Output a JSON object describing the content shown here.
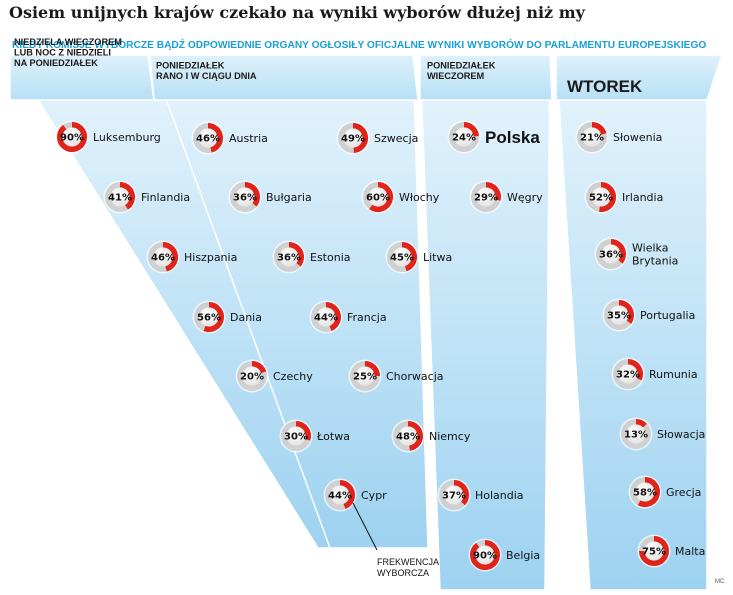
{
  "title": "Osiem unijnych krajów czekało na wyniki wyborów dłużej niż my",
  "subtitle": "KIEDY KOMISJE WYBORCZE BĄDŹ ODPOWIEDNIE ORGANY OGŁOSIŁY OFICJALNE WYNIKI WYBORÓW DO PARLAMENTU EUROPEJSKIEGO",
  "legend_label": [
    "FREKWENCJA",
    "WYBORCZA"
  ],
  "credit": "MC",
  "colors": {
    "title": "#1a1a1a",
    "subtitle": "#1aa0d8",
    "band_light": "#e6f4fc",
    "band_dark": "#9fd3f1",
    "ring_red": "#e2231a",
    "ring_grey": "#d0d0d0"
  },
  "chart_data": {
    "type": "donut-grid",
    "measure": "turnout_percent",
    "groups": [
      {
        "header": [
          "NIEDZIELA WIECZOREM",
          "LUB NOC Z NIEDZIELI",
          "NA PONIEDZIAŁEK"
        ],
        "countries": [
          {
            "name": [
              "Luksemburg"
            ],
            "value": 90
          },
          {
            "name": [
              "Finlandia"
            ],
            "value": 41
          },
          {
            "name": [
              "Hiszpania"
            ],
            "value": 46
          },
          {
            "name": [
              "Dania"
            ],
            "value": 56
          },
          {
            "name": [
              "Czechy"
            ],
            "value": 20
          },
          {
            "name": [
              "Łotwa"
            ],
            "value": 30
          },
          {
            "name": [
              "Cypr"
            ],
            "value": 44
          }
        ]
      },
      {
        "header": [
          "PONIEDZIAŁEK",
          "RANO I W CIĄGU DNIA"
        ],
        "countries": [
          {
            "name": [
              "Austria"
            ],
            "value": 46
          },
          {
            "name": [
              "Bułgaria"
            ],
            "value": 36
          },
          {
            "name": [
              "Estonia"
            ],
            "value": 36
          },
          {
            "name": [
              "Francja"
            ],
            "value": 44
          },
          {
            "name": [
              "Szwecja"
            ],
            "value": 49
          },
          {
            "name": [
              "Włochy"
            ],
            "value": 60
          },
          {
            "name": [
              "Litwa"
            ],
            "value": 45
          },
          {
            "name": [
              "Chorwacja"
            ],
            "value": 25
          },
          {
            "name": [
              "Niemcy"
            ],
            "value": 48
          },
          {
            "name": [
              "Holandia"
            ],
            "value": 37
          }
        ]
      },
      {
        "header": [
          "PONIEDZIAŁEK",
          "WIECZOREM"
        ],
        "countries": [
          {
            "name": [
              "Polska"
            ],
            "value": 24,
            "highlight": true
          },
          {
            "name": [
              "Węgry"
            ],
            "value": 29
          },
          {
            "name": [
              "Belgia"
            ],
            "value": 90
          }
        ]
      },
      {
        "header": [
          "WTOREK"
        ],
        "countries": [
          {
            "name": [
              "Słowenia"
            ],
            "value": 21
          },
          {
            "name": [
              "Irlandia"
            ],
            "value": 52
          },
          {
            "name": [
              "Wielka",
              "Brytania"
            ],
            "value": 36
          },
          {
            "name": [
              "Portugalia"
            ],
            "value": 35
          },
          {
            "name": [
              "Rumunia"
            ],
            "value": 32
          },
          {
            "name": [
              "Słowacja"
            ],
            "value": 13
          },
          {
            "name": [
              "Grecja"
            ],
            "value": 58
          },
          {
            "name": [
              "Malta"
            ],
            "value": 75
          }
        ]
      }
    ]
  }
}
